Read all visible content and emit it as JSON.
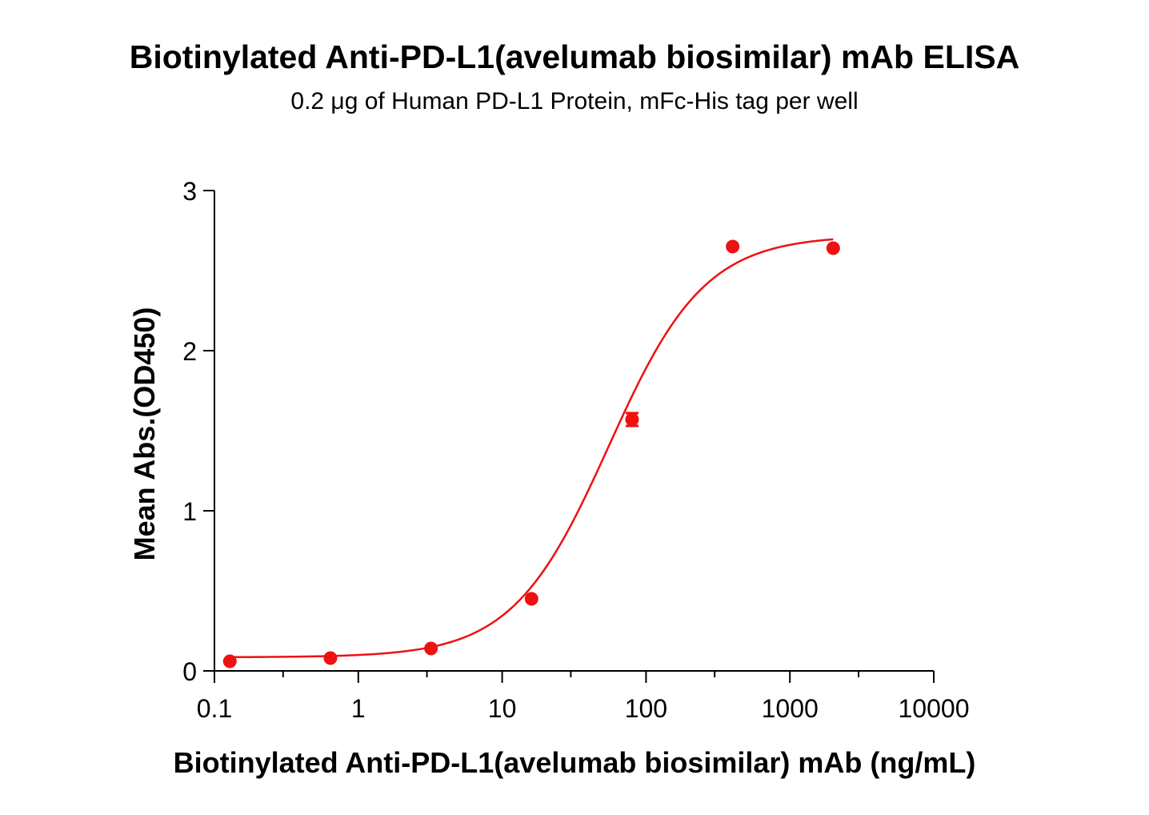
{
  "chart_data": {
    "type": "scatter",
    "title": "Biotinylated Anti-PD-L1(avelumab biosimilar) mAb ELISA",
    "subtitle": "0.2 μg of Human PD-L1 Protein, mFc-His tag per well",
    "xlabel": "Biotinylated Anti-PD-L1(avelumab biosimilar) mAb (ng/mL)",
    "ylabel": "Mean Abs.(OD450)",
    "x_scale": "log",
    "xlim": [
      0.1,
      10000
    ],
    "ylim": [
      0,
      3
    ],
    "x_ticks": [
      "0.1",
      "1",
      "10",
      "100",
      "1000",
      "10000"
    ],
    "y_ticks": [
      "0",
      "1",
      "2",
      "3"
    ],
    "grid": false,
    "colors": {
      "series": "#ee1111",
      "axis": "#000000"
    },
    "series": [
      {
        "x": [
          0.128,
          0.64,
          3.2,
          16,
          80,
          400,
          2000
        ],
        "y": [
          0.06,
          0.08,
          0.14,
          0.45,
          1.57,
          2.65,
          2.64
        ],
        "error": [
          0,
          0,
          0,
          0,
          0.04,
          0,
          0
        ]
      }
    ],
    "fit": {
      "model": "4PL",
      "bottom": 0.085,
      "top": 2.72,
      "ec50": 55,
      "hill": 1.3,
      "x_range": [
        0.128,
        2000
      ]
    }
  }
}
